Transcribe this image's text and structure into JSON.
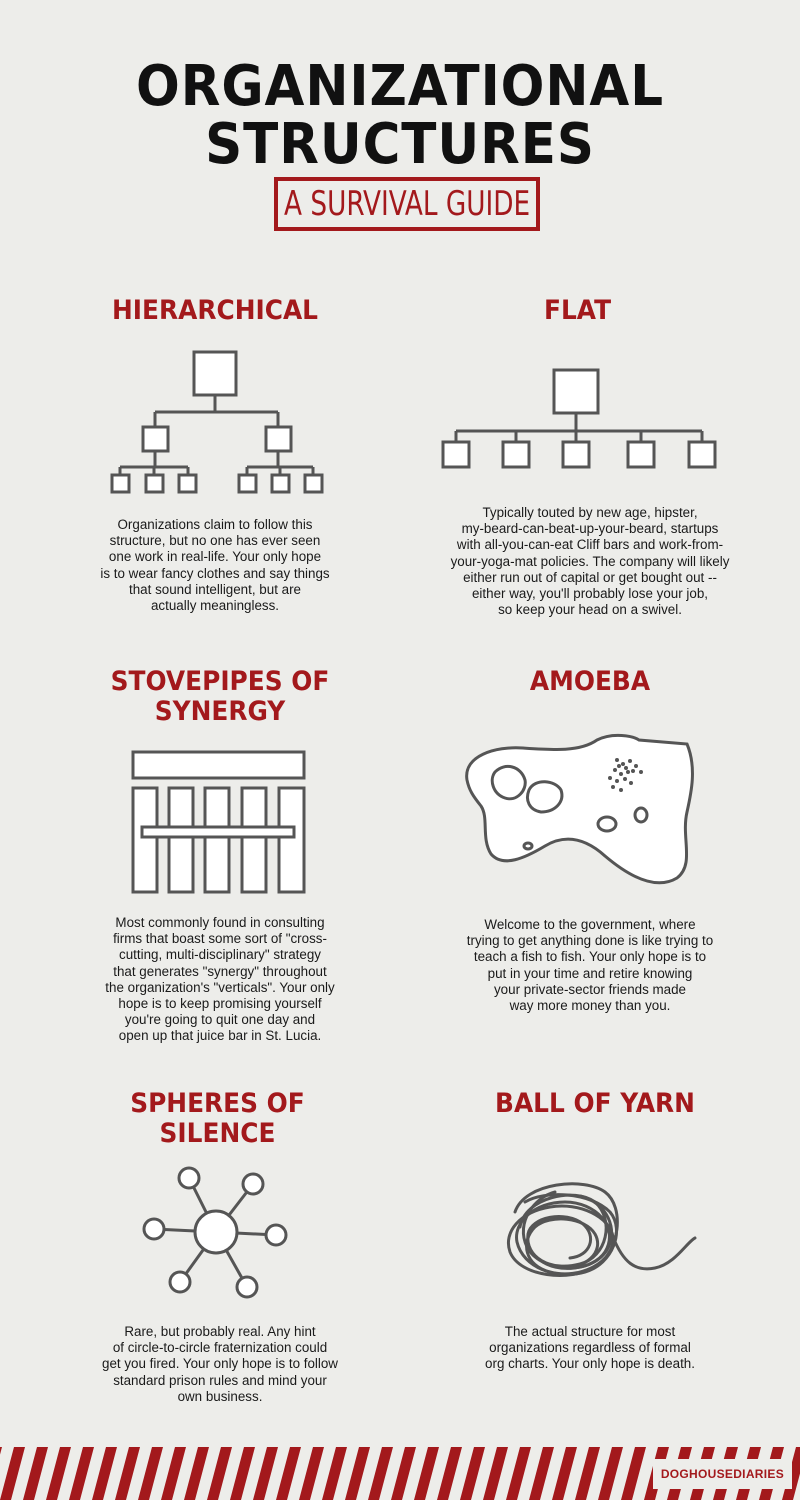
{
  "header": {
    "title_line1": "ORGANIZATIONAL",
    "title_line2": "STRUCTURES",
    "subtitle": "A SURVIVAL GUIDE"
  },
  "sections": [
    {
      "title": "HIERARCHICAL",
      "description": "Organizations claim to follow this\nstructure, but no one has ever seen\none work in real-life.  Your only hope\nis to wear fancy clothes and say things\nthat sound intelligent, but are\nactually meaningless."
    },
    {
      "title": "FLAT",
      "description": "Typically touted by new age, hipster,\nmy-beard-can-beat-up-your-beard, startups\nwith  all-you-can-eat Cliff bars and work-from-\nyour-yoga-mat policies. The company will likely\neither run out of capital or get bought out --\neither way, you'll probably lose your job,\nso keep your head on a swivel."
    },
    {
      "title_line1": "STOVEPIPES OF",
      "title_line2": "SYNERGY",
      "description": "Most commonly found in consulting\nfirms that boast some sort of \"cross-\ncutting, multi-disciplinary\" strategy\nthat generates \"synergy\" throughout\nthe organization's \"verticals\". Your only\nhope is to keep promising yourself\nyou're going to quit one day and\nopen up that juice bar in St. Lucia."
    },
    {
      "title": "AMOEBA",
      "description": "Welcome to the government, where\ntrying to get anything done is like trying to\nteach a fish to fish. Your only hope is to\nput in your time and retire knowing\nyour private-sector friends made\nway more money than you."
    },
    {
      "title_line1": "SPHERES OF",
      "title_line2": "SILENCE",
      "description": "Rare, but probably real.  Any hint\nof circle-to-circle fraternization could\nget you fired.  Your only hope is to follow\nstandard prison rules and mind your\nown business."
    },
    {
      "title": "BALL OF YARN",
      "description": "The actual structure for most\norganizations regardless of formal\norg charts. Your only hope is death."
    }
  ],
  "footer": {
    "brand": "DOGHOUSEDIARIES"
  },
  "colors": {
    "accent": "#a3191c",
    "background": "#ededea",
    "line": "#555555"
  },
  "icons": [
    "hierarchy-chart-icon",
    "flat-chart-icon",
    "stovepipes-icon",
    "amoeba-icon",
    "spheres-network-icon",
    "yarn-ball-icon"
  ]
}
